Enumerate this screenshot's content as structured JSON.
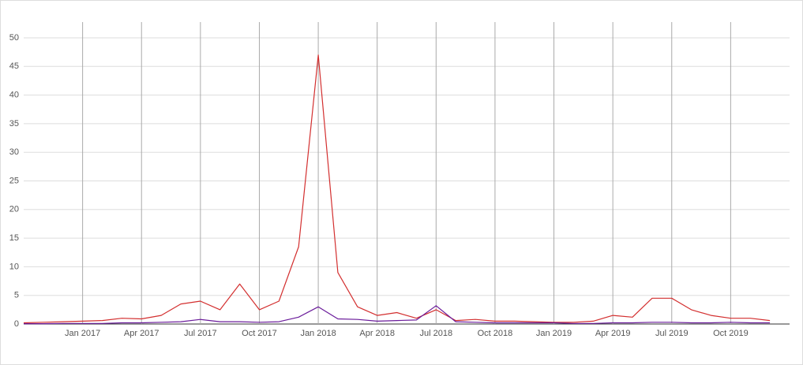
{
  "chart_data": {
    "type": "line",
    "x": [
      "2016-10",
      "2016-11",
      "2016-12",
      "2017-01",
      "2017-02",
      "2017-03",
      "2017-04",
      "2017-05",
      "2017-06",
      "2017-07",
      "2017-08",
      "2017-09",
      "2017-10",
      "2017-11",
      "2017-12",
      "2018-01",
      "2018-02",
      "2018-03",
      "2018-04",
      "2018-05",
      "2018-06",
      "2018-07",
      "2018-08",
      "2018-09",
      "2018-10",
      "2018-11",
      "2018-12",
      "2019-01",
      "2019-02",
      "2019-03",
      "2019-04",
      "2019-05",
      "2019-06",
      "2019-07",
      "2019-08",
      "2019-09",
      "2019-10",
      "2019-11",
      "2019-12"
    ],
    "series": [
      {
        "color": "#d32f2f",
        "values": [
          0.2,
          0.3,
          0.4,
          0.5,
          0.6,
          1.0,
          0.9,
          1.5,
          3.5,
          4.0,
          2.5,
          7.0,
          2.5,
          4.0,
          13.5,
          47,
          9,
          3,
          1.5,
          2,
          1,
          2.5,
          0.6,
          0.8,
          0.5,
          0.5,
          0.4,
          0.3,
          0.3,
          0.5,
          1.5,
          1.2,
          4.5,
          4.5,
          2.5,
          1.5,
          1.0,
          1.0,
          0.6
        ]
      },
      {
        "color": "#6a1b9a",
        "values": [
          0.05,
          0.05,
          0.1,
          0.1,
          0.1,
          0.2,
          0.2,
          0.3,
          0.4,
          0.8,
          0.4,
          0.4,
          0.3,
          0.4,
          1.2,
          3.0,
          0.9,
          0.8,
          0.5,
          0.6,
          0.7,
          3.2,
          0.4,
          0.3,
          0.2,
          0.2,
          0.2,
          0.2,
          0.1,
          0.1,
          0.2,
          0.2,
          0.3,
          0.3,
          0.2,
          0.2,
          0.3,
          0.2,
          0.2
        ]
      }
    ],
    "xlim": [
      "2016-10",
      "2020-01"
    ],
    "xticks": [
      {
        "value": "2017-01",
        "label": "Jan 2017"
      },
      {
        "value": "2017-04",
        "label": "Apr 2017"
      },
      {
        "value": "2017-07",
        "label": "Jul 2017"
      },
      {
        "value": "2017-10",
        "label": "Oct 2017"
      },
      {
        "value": "2018-01",
        "label": "Jan 2018"
      },
      {
        "value": "2018-04",
        "label": "Apr 2018"
      },
      {
        "value": "2018-07",
        "label": "Jul 2018"
      },
      {
        "value": "2018-10",
        "label": "Oct 2018"
      },
      {
        "value": "2019-01",
        "label": "Jan 2019"
      },
      {
        "value": "2019-04",
        "label": "Apr 2019"
      },
      {
        "value": "2019-07",
        "label": "Jul 2019"
      },
      {
        "value": "2019-10",
        "label": "Oct 2019"
      }
    ],
    "ylim": [
      0,
      50
    ],
    "yticks": [
      0,
      5,
      10,
      15,
      20,
      25,
      30,
      35,
      40,
      45,
      50
    ],
    "grid": true
  }
}
